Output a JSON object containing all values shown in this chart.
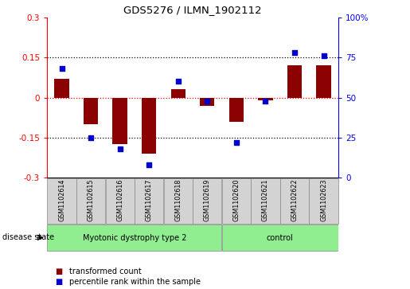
{
  "title": "GDS5276 / ILMN_1902112",
  "samples": [
    "GSM1102614",
    "GSM1102615",
    "GSM1102616",
    "GSM1102617",
    "GSM1102618",
    "GSM1102619",
    "GSM1102620",
    "GSM1102621",
    "GSM1102622",
    "GSM1102623"
  ],
  "transformed_count": [
    0.07,
    -0.1,
    -0.175,
    -0.21,
    0.03,
    -0.03,
    -0.09,
    -0.01,
    0.12,
    0.12
  ],
  "percentile_rank": [
    68,
    25,
    18,
    8,
    60,
    48,
    22,
    48,
    78,
    76
  ],
  "ylim_left": [
    -0.3,
    0.3
  ],
  "ylim_right": [
    0,
    100
  ],
  "yticks_left": [
    -0.3,
    -0.15,
    0.0,
    0.15,
    0.3
  ],
  "yticks_right": [
    0,
    25,
    50,
    75,
    100
  ],
  "ytick_labels_left": [
    "-0.3",
    "-0.15",
    "0",
    "0.15",
    "0.3"
  ],
  "ytick_labels_right": [
    "0",
    "25",
    "50",
    "75",
    "100%"
  ],
  "hlines": [
    0.15,
    -0.15
  ],
  "red_hline": 0.0,
  "bar_color": "#8B0000",
  "dot_color": "#0000CD",
  "group1_label": "Myotonic dystrophy type 2",
  "group2_label": "control",
  "group1_count": 6,
  "group2_count": 4,
  "disease_state_label": "disease state",
  "legend_bar_label": "transformed count",
  "legend_dot_label": "percentile rank within the sample",
  "group1_color": "#90EE90",
  "group2_color": "#90EE90",
  "sample_box_color": "#D3D3D3",
  "bg_color": "#FFFFFF"
}
